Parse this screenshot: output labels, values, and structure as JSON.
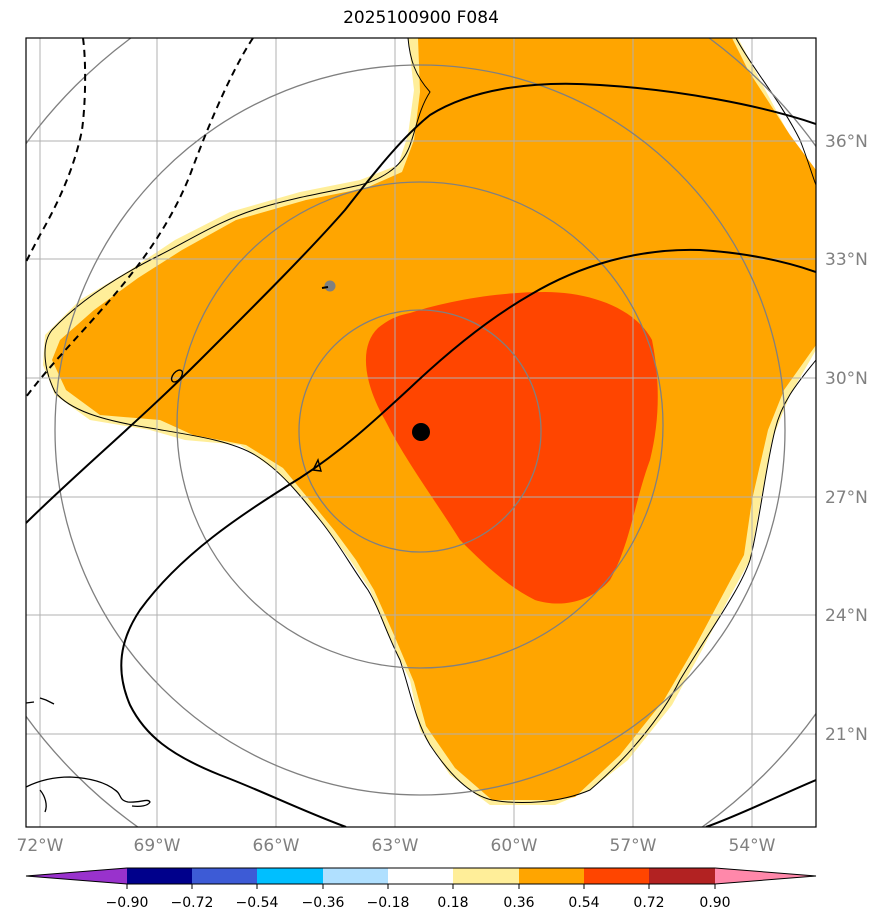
{
  "map": {
    "title": "2025100900 F084",
    "lon_labels": [
      "72°W",
      "69°W",
      "66°W",
      "63°W",
      "60°W",
      "57°W",
      "54°W"
    ],
    "lat_labels": [
      "36°N",
      "33°N",
      "30°N",
      "27°N",
      "24°N",
      "21°N"
    ],
    "extent": {
      "lon_min": -72.3,
      "lon_max": -52.4,
      "lat_min": 18.7,
      "lat_max": 38.4
    },
    "center_marker": {
      "lon": -62.3,
      "lat": 28.6
    },
    "secondary_marker": {
      "lon": -64.7,
      "lat": 32.3
    },
    "contour_labels": [
      "0",
      "4"
    ],
    "colors": {
      "orange": "#ffa500",
      "red_orange": "#ff4500",
      "light_yellow": "#ffee99",
      "grid": "#b0b0b0",
      "rings": "#808080"
    }
  },
  "colorbar": {
    "ticks": [
      "−0.90",
      "−0.72",
      "−0.54",
      "−0.36",
      "−0.18",
      "0.18",
      "0.36",
      "0.54",
      "0.72",
      "0.90"
    ],
    "colors": [
      "#9932cc",
      "#00008b",
      "#3d5bd6",
      "#00bfff",
      "#b0e0ff",
      "#ffffff",
      "#ffee99",
      "#ffa500",
      "#ff4500",
      "#b22222",
      "#ff88aa"
    ]
  }
}
